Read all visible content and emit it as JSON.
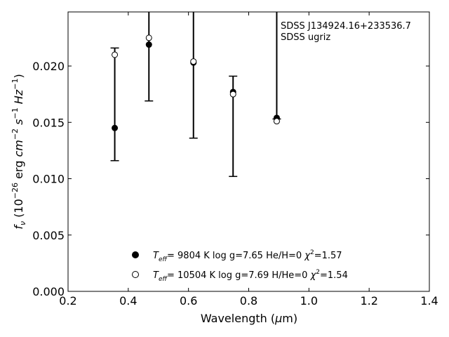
{
  "chart_data": {
    "type": "scatter",
    "annotation": [
      "SDSS J134924.16+233536.7",
      "SDSS ugriz"
    ],
    "xlabel": "Wavelength (μm)",
    "ylabel": "fν (10⁻²⁶ erg cm⁻² s⁻¹ Hz⁻¹)",
    "xlim": [
      0.2,
      1.4
    ],
    "ylim": [
      0.0,
      0.0248
    ],
    "xticks": [
      "0.2",
      "0.4",
      "0.6",
      "0.8",
      "1.0",
      "1.2",
      "1.4"
    ],
    "yticks": [
      "0.000",
      "0.005",
      "0.010",
      "0.015",
      "0.020"
    ],
    "grid": false,
    "legend_position": "bottom-center",
    "observed": {
      "x": [
        0.3551,
        0.4686,
        0.6165,
        0.7481,
        0.8931
      ],
      "y": [
        0.0145,
        0.0219,
        0.0203,
        0.0177,
        0.0154
      ],
      "yerr_low": [
        0.0029,
        0.005,
        0.0067,
        0.0075,
        0.0001
      ],
      "yerr_high": [
        0.0071,
        0.006,
        0.007,
        0.0014,
        0.014
      ]
    },
    "series": [
      {
        "label": "T_eff=  9804 K  log g=7.65  He/H=0  χ²=1.57",
        "marker": "filled-circle",
        "x": [
          0.3551,
          0.4686,
          0.6165,
          0.7481,
          0.8931
        ],
        "y": [
          0.0145,
          0.0219,
          0.0203,
          0.0177,
          0.0154
        ]
      },
      {
        "label": "T_eff= 10504 K  log g=7.69  H/He=0  χ²=1.54",
        "marker": "open-circle",
        "x": [
          0.3551,
          0.4686,
          0.6165,
          0.7481,
          0.8931
        ],
        "y": [
          0.021,
          0.0225,
          0.0204,
          0.0175,
          0.0151
        ]
      }
    ]
  }
}
